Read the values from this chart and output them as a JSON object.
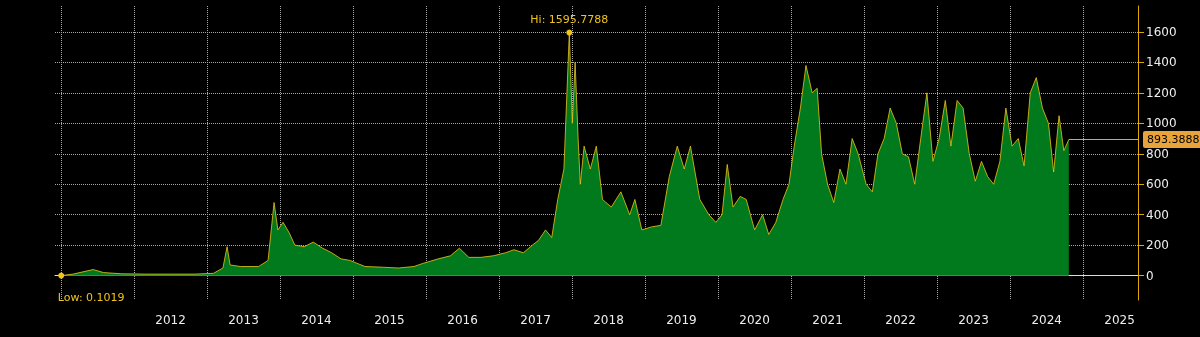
{
  "chart_data": {
    "type": "area",
    "x": [
      "2011-01-01",
      "2011-03-01",
      "2011-06-10",
      "2011-08-01",
      "2011-11-01",
      "2012-03-01",
      "2012-07-01",
      "2012-11-01",
      "2013-02-01",
      "2013-03-20",
      "2013-04-10",
      "2013-04-25",
      "2013-06-15",
      "2013-09-15",
      "2013-11-01",
      "2013-12-01",
      "2013-12-20",
      "2014-01-15",
      "2014-02-15",
      "2014-03-15",
      "2014-05-01",
      "2014-06-15",
      "2014-08-01",
      "2014-09-15",
      "2014-11-01",
      "2014-12-15",
      "2015-03-01",
      "2015-06-01",
      "2015-08-15",
      "2015-11-01",
      "2015-12-15",
      "2016-03-01",
      "2016-05-01",
      "2016-06-15",
      "2016-08-01",
      "2016-10-01",
      "2016-12-01",
      "2017-02-01",
      "2017-03-15",
      "2017-05-01",
      "2017-06-15",
      "2017-07-15",
      "2017-08-20",
      "2017-09-20",
      "2017-10-20",
      "2017-11-20",
      "2017-12-17",
      "2018-01-01",
      "2018-01-15",
      "2018-01-30",
      "2018-02-10",
      "2018-03-01",
      "2018-04-01",
      "2018-05-01",
      "2018-06-01",
      "2018-07-15",
      "2018-09-01",
      "2018-10-15",
      "2018-11-10",
      "2018-12-15",
      "2019-02-01",
      "2019-03-20",
      "2019-05-01",
      "2019-06-10",
      "2019-07-15",
      "2019-08-15",
      "2019-10-01",
      "2019-11-15",
      "2019-12-20",
      "2020-01-20",
      "2020-02-15",
      "2020-03-15",
      "2020-04-20",
      "2020-05-20",
      "2020-07-01",
      "2020-08-10",
      "2020-09-10",
      "2020-10-15",
      "2020-11-20",
      "2020-12-20",
      "2021-01-15",
      "2021-02-15",
      "2021-03-15",
      "2021-04-15",
      "2021-05-10",
      "2021-06-01",
      "2021-07-01",
      "2021-08-01",
      "2021-09-01",
      "2021-10-01",
      "2021-11-01",
      "2021-12-01",
      "2022-01-10",
      "2022-02-10",
      "2022-03-10",
      "2022-04-10",
      "2022-05-10",
      "2022-06-10",
      "2022-07-10",
      "2022-08-10",
      "2022-09-10",
      "2022-10-10",
      "2022-11-10",
      "2022-12-10",
      "2023-01-10",
      "2023-02-10",
      "2023-03-10",
      "2023-04-10",
      "2023-05-10",
      "2023-06-10",
      "2023-07-10",
      "2023-08-10",
      "2023-09-10",
      "2023-10-10",
      "2023-11-10",
      "2023-12-10",
      "2024-01-10",
      "2024-02-10",
      "2024-03-10",
      "2024-04-10",
      "2024-05-10",
      "2024-06-10",
      "2024-07-10",
      "2024-08-05",
      "2024-09-01",
      "2024-09-25",
      "2024-10-20"
    ],
    "values": [
      0.1019,
      10,
      40,
      20,
      12,
      10,
      10,
      10,
      15,
      50,
      190,
      70,
      60,
      60,
      100,
      480,
      300,
      350,
      280,
      200,
      190,
      220,
      180,
      150,
      110,
      100,
      60,
      55,
      50,
      60,
      80,
      110,
      130,
      180,
      120,
      120,
      130,
      150,
      170,
      150,
      200,
      230,
      300,
      250,
      500,
      700,
      1595.7788,
      1000,
      1400,
      900,
      600,
      850,
      700,
      850,
      500,
      450,
      550,
      400,
      500,
      300,
      320,
      330,
      650,
      850,
      700,
      850,
      500,
      400,
      350,
      400,
      730,
      450,
      520,
      500,
      300,
      400,
      270,
      350,
      500,
      600,
      850,
      1100,
      1380,
      1200,
      1230,
      800,
      600,
      480,
      700,
      600,
      900,
      800,
      600,
      550,
      800,
      900,
      1100,
      1000,
      800,
      780,
      600,
      900,
      1200,
      750,
      900,
      1150,
      850,
      1150,
      1100,
      800,
      620,
      750,
      650,
      600,
      750,
      1100,
      850,
      900,
      720,
      1200,
      1300,
      1100,
      1000,
      680,
      1050,
      820,
      893.3888
    ],
    "color": "#007a1c",
    "xlim": [
      "2010-12-01",
      "2025-10-01"
    ],
    "xticks": [
      {
        "value": "2011-01-01",
        "label": null
      },
      {
        "value": "2012-01-01",
        "label": null
      },
      {
        "value": "2012-07-01",
        "label": "2012"
      },
      {
        "value": "2013-01-01",
        "label": null
      },
      {
        "value": "2013-07-01",
        "label": "2013"
      },
      {
        "value": "2014-01-01",
        "label": null
      },
      {
        "value": "2014-07-01",
        "label": "2014"
      },
      {
        "value": "2015-01-01",
        "label": null
      },
      {
        "value": "2015-07-01",
        "label": "2015"
      },
      {
        "value": "2016-01-01",
        "label": null
      },
      {
        "value": "2016-07-01",
        "label": "2016"
      },
      {
        "value": "2017-01-01",
        "label": null
      },
      {
        "value": "2017-07-01",
        "label": "2017"
      },
      {
        "value": "2018-01-01",
        "label": null
      },
      {
        "value": "2018-07-01",
        "label": "2018"
      },
      {
        "value": "2019-01-01",
        "label": null
      },
      {
        "value": "2019-07-01",
        "label": "2019"
      },
      {
        "value": "2020-01-01",
        "label": null
      },
      {
        "value": "2020-07-01",
        "label": "2020"
      },
      {
        "value": "2021-01-01",
        "label": null
      },
      {
        "value": "2021-07-01",
        "label": "2021"
      },
      {
        "value": "2022-01-01",
        "label": null
      },
      {
        "value": "2022-07-01",
        "label": "2022"
      },
      {
        "value": "2023-01-01",
        "label": null
      },
      {
        "value": "2023-07-01",
        "label": "2023"
      },
      {
        "value": "2024-01-01",
        "label": null
      },
      {
        "value": "2024-07-01",
        "label": "2024"
      },
      {
        "value": "2025-01-01",
        "label": null
      },
      {
        "value": "2025-07-01",
        "label": "2025"
      }
    ],
    "ylim": [
      -160,
      1770
    ],
    "yticks": [
      0,
      200,
      400,
      600,
      800,
      1000,
      1200,
      1400,
      1600
    ],
    "grid": true,
    "marker": "none",
    "line_style": "solid",
    "ref_lines": [
      {
        "axis": "y",
        "value": 893.3888,
        "label": "893.3888",
        "color": "#e8a33a"
      }
    ],
    "annotations": [
      {
        "text": "Hi: 1595.7788",
        "x": "2017-12-17",
        "y": 1595.7788
      },
      {
        "text": "Low: 0.1019",
        "x": "2011-01-01",
        "y": 0.1019
      }
    ]
  }
}
